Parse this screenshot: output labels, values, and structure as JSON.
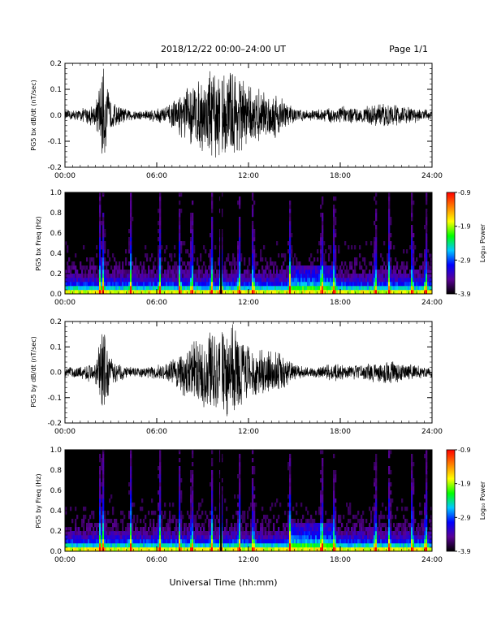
{
  "header": {
    "title": "2018/12/22  00:00–24:00 UT",
    "page": "Page 1/1"
  },
  "footer": {
    "xlabel": "Universal Time (hh:mm)"
  },
  "colorbar": {
    "label": "Log₁₀ Power",
    "ticks": [
      "-0.9",
      "-1.9",
      "-2.9",
      "-3.9"
    ],
    "range": [
      -3.9,
      -0.9
    ],
    "colors": [
      "#000000",
      "#5a0096",
      "#0000ff",
      "#00c8ff",
      "#00ff00",
      "#ffff00",
      "#ff8000",
      "#ff0000"
    ]
  },
  "chart_data": [
    {
      "type": "line",
      "ylabel": "PG5 bx dB/dt (nT/sec)",
      "xticks": [
        "00:00",
        "06:00",
        "12:00",
        "18:00",
        "24:00"
      ],
      "yticks": [
        "-0.2",
        "-0.1",
        "0.0",
        "0.1",
        "0.2"
      ],
      "xlim_hours": [
        0,
        24
      ],
      "ylim": [
        -0.2,
        0.2
      ],
      "series": [
        {
          "x_hours": [
            0,
            1,
            2,
            2.5,
            3,
            4,
            5,
            6,
            7,
            8,
            9,
            9.5,
            10,
            10.5,
            11,
            11.5,
            12,
            13,
            14,
            15,
            16,
            17,
            18,
            19,
            20,
            21,
            22,
            23,
            24
          ],
          "amplitude": [
            0.02,
            0.025,
            0.05,
            0.2,
            0.06,
            0.025,
            0.02,
            0.03,
            0.05,
            0.12,
            0.15,
            0.2,
            0.17,
            0.18,
            0.2,
            0.17,
            0.12,
            0.1,
            0.09,
            0.03,
            0.02,
            0.03,
            0.04,
            0.03,
            0.04,
            0.05,
            0.04,
            0.03,
            0.02
          ]
        }
      ]
    },
    {
      "type": "heatmap",
      "ylabel": "PG5 bx Freq (Hz)",
      "xticks": [
        "00:00",
        "06:00",
        "12:00",
        "18:00",
        "24:00"
      ],
      "yticks": [
        "0.0",
        "0.2",
        "0.4",
        "0.6",
        "0.8",
        "1.0"
      ],
      "xlim_hours": [
        0,
        24
      ],
      "ylim": [
        0,
        1.0
      ],
      "bursts_hours": [
        2.3,
        2.5,
        4.3,
        6.2,
        7.5,
        8.3,
        9.6,
        10.2,
        11.4,
        12.3,
        14.7,
        16.8,
        17.6,
        20.3,
        21.2,
        22.7,
        23.6
      ]
    },
    {
      "type": "line",
      "ylabel": "PG5 by dB/dt (nT/sec)",
      "xticks": [
        "00:00",
        "06:00",
        "12:00",
        "18:00",
        "24:00"
      ],
      "yticks": [
        "-0.2",
        "-0.1",
        "0.0",
        "0.1",
        "0.2"
      ],
      "xlim_hours": [
        0,
        24
      ],
      "ylim": [
        -0.2,
        0.2
      ],
      "series": [
        {
          "x_hours": [
            0,
            1,
            2,
            2.5,
            3,
            4,
            5,
            6,
            7,
            8,
            9,
            9.5,
            10,
            10.5,
            11,
            11.5,
            12,
            13,
            14,
            15,
            16,
            17,
            18,
            19,
            20,
            21,
            22,
            23,
            24
          ],
          "amplitude": [
            0.02,
            0.025,
            0.05,
            0.2,
            0.06,
            0.025,
            0.02,
            0.03,
            0.05,
            0.12,
            0.15,
            0.2,
            0.17,
            0.18,
            0.2,
            0.17,
            0.12,
            0.1,
            0.09,
            0.03,
            0.02,
            0.03,
            0.04,
            0.03,
            0.04,
            0.05,
            0.04,
            0.03,
            0.02
          ]
        }
      ]
    },
    {
      "type": "heatmap",
      "ylabel": "PG5 by Freq (Hz)",
      "xticks": [
        "00:00",
        "06:00",
        "12:00",
        "18:00",
        "24:00"
      ],
      "yticks": [
        "0.0",
        "0.2",
        "0.4",
        "0.6",
        "0.8",
        "1.0"
      ],
      "xlim_hours": [
        0,
        24
      ],
      "ylim": [
        0,
        1.0
      ],
      "bursts_hours": [
        2.3,
        2.5,
        4.3,
        6.2,
        7.5,
        8.3,
        9.6,
        10.2,
        11.4,
        12.3,
        14.7,
        16.8,
        17.6,
        20.3,
        21.2,
        22.7,
        23.6
      ]
    }
  ]
}
